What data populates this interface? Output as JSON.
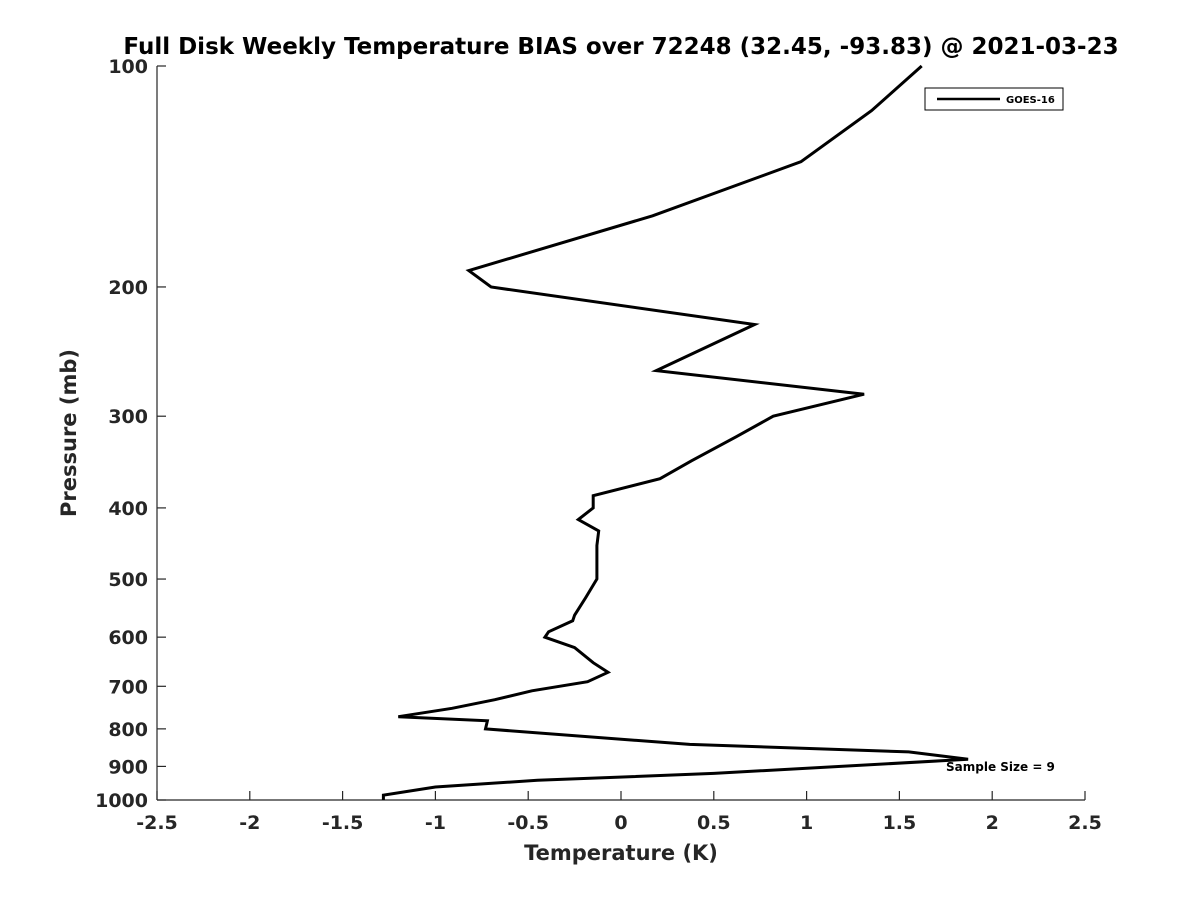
{
  "chart_data": {
    "type": "line",
    "title": "Full Disk Weekly Temperature BIAS over 72248 (32.45, -93.83) @ 2021-03-23",
    "xlabel": "Temperature (K)",
    "ylabel": "Pressure (mb)",
    "xlim": [
      -2.5,
      2.5
    ],
    "ylim": [
      1000,
      100
    ],
    "y_scale": "log",
    "y_inverted": true,
    "x_ticks": [
      "-2.5",
      "-2",
      "-1.5",
      "-1",
      "-0.5",
      "0",
      "0.5",
      "1",
      "1.5",
      "2",
      "2.5"
    ],
    "y_ticks": [
      "100",
      "200",
      "300",
      "400",
      "500",
      "600",
      "700",
      "800",
      "900",
      "1000"
    ],
    "grid": false,
    "legend_position": "top-right",
    "annotation": "Sample Size = 9",
    "series": [
      {
        "name": "GOES-16",
        "color": "#000000",
        "points": [
          {
            "x": 1.62,
            "p": 100
          },
          {
            "x": 1.35,
            "p": 115
          },
          {
            "x": 0.97,
            "p": 135
          },
          {
            "x": 0.17,
            "p": 160
          },
          {
            "x": -0.82,
            "p": 190
          },
          {
            "x": -0.7,
            "p": 200
          },
          {
            "x": 0.72,
            "p": 225
          },
          {
            "x": 0.19,
            "p": 260
          },
          {
            "x": 1.31,
            "p": 280
          },
          {
            "x": 0.82,
            "p": 300
          },
          {
            "x": 0.62,
            "p": 320
          },
          {
            "x": 0.38,
            "p": 345
          },
          {
            "x": 0.21,
            "p": 365
          },
          {
            "x": -0.15,
            "p": 385
          },
          {
            "x": -0.15,
            "p": 400
          },
          {
            "x": -0.23,
            "p": 415
          },
          {
            "x": -0.12,
            "p": 430
          },
          {
            "x": -0.13,
            "p": 450
          },
          {
            "x": -0.13,
            "p": 475
          },
          {
            "x": -0.13,
            "p": 500
          },
          {
            "x": -0.19,
            "p": 530
          },
          {
            "x": -0.25,
            "p": 560
          },
          {
            "x": -0.26,
            "p": 570
          },
          {
            "x": -0.39,
            "p": 590
          },
          {
            "x": -0.41,
            "p": 600
          },
          {
            "x": -0.25,
            "p": 620
          },
          {
            "x": -0.15,
            "p": 650
          },
          {
            "x": -0.07,
            "p": 670
          },
          {
            "x": -0.18,
            "p": 690
          },
          {
            "x": -0.48,
            "p": 710
          },
          {
            "x": -0.68,
            "p": 730
          },
          {
            "x": -0.91,
            "p": 750
          },
          {
            "x": -1.2,
            "p": 770
          },
          {
            "x": -0.72,
            "p": 780
          },
          {
            "x": -0.73,
            "p": 800
          },
          {
            "x": 0.37,
            "p": 840
          },
          {
            "x": 1.55,
            "p": 860
          },
          {
            "x": 1.87,
            "p": 880
          },
          {
            "x": 0.5,
            "p": 920
          },
          {
            "x": -0.45,
            "p": 940
          },
          {
            "x": -1.0,
            "p": 960
          },
          {
            "x": -1.28,
            "p": 985
          },
          {
            "x": -1.28,
            "p": 1000
          }
        ]
      }
    ]
  }
}
